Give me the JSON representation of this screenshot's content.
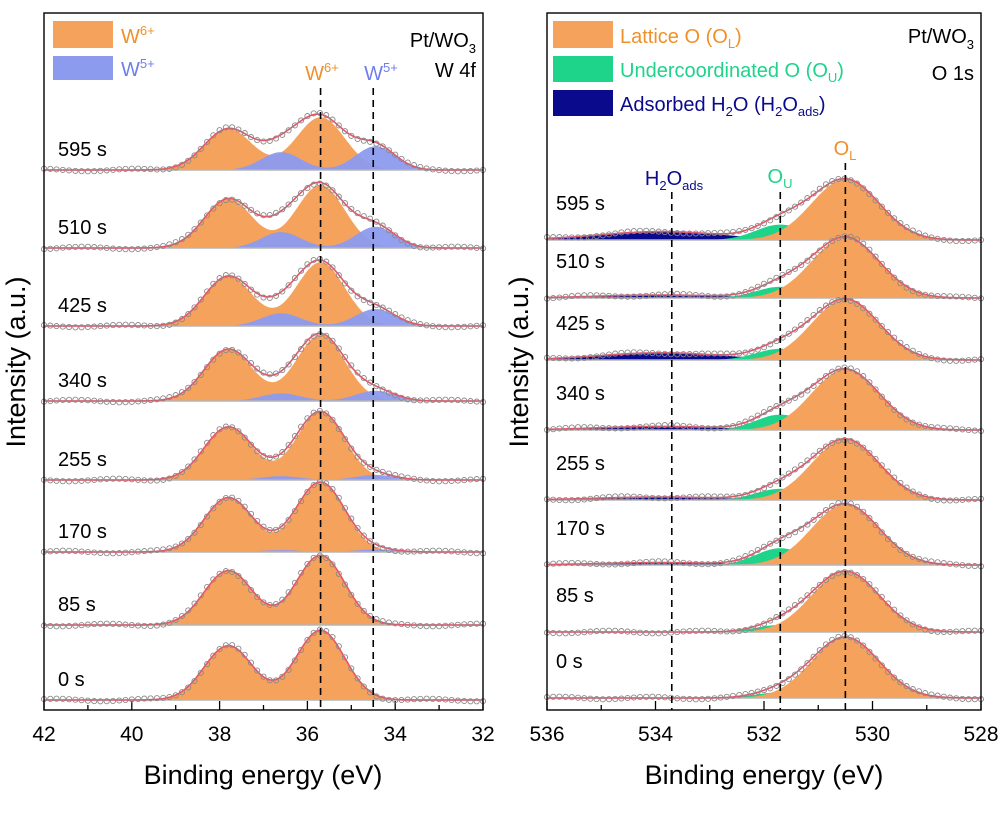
{
  "chart_data": [
    {
      "type": "area",
      "xlabel": "Binding energy (eV)",
      "ylabel": "Intensity (a.u.)",
      "xlim": [
        42,
        32
      ],
      "x_ticks": [
        "42",
        "40",
        "38",
        "36",
        "34",
        "32"
      ],
      "corner_text": [
        "Pt/WO3",
        "W 4f"
      ],
      "legend": [
        {
          "label": "W6+",
          "color": "#F5A25D"
        },
        {
          "label": "W5+",
          "color": "#8C9BEE"
        }
      ],
      "reference_lines": [
        {
          "label": "W6+",
          "x": 35.7,
          "color": "#F0902A"
        },
        {
          "label": "W5+",
          "x": 34.5,
          "color": "#6F7FEA"
        }
      ],
      "spectra": [
        {
          "time": "595 s",
          "w6_peaks": [
            37.8,
            35.7
          ],
          "w6_height": 0.62,
          "w5_peaks": [
            36.6,
            34.45
          ],
          "w5_height": 0.28
        },
        {
          "time": "510 s",
          "w6_peaks": [
            37.8,
            35.7
          ],
          "w6_height": 0.74,
          "w5_peaks": [
            36.6,
            34.45
          ],
          "w5_height": 0.25
        },
        {
          "time": "425 s",
          "w6_peaks": [
            37.8,
            35.7
          ],
          "w6_height": 0.75,
          "w5_peaks": [
            36.6,
            34.45
          ],
          "w5_height": 0.2
        },
        {
          "time": "340 s",
          "w6_peaks": [
            37.8,
            35.7
          ],
          "w6_height": 0.78,
          "w5_peaks": [
            36.6,
            34.45
          ],
          "w5_height": 0.12
        },
        {
          "time": "255 s",
          "w6_peaks": [
            37.8,
            35.7
          ],
          "w6_height": 0.8,
          "w5_peaks": [
            36.6,
            34.45
          ],
          "w5_height": 0.06
        },
        {
          "time": "170 s",
          "w6_peaks": [
            37.8,
            35.7
          ],
          "w6_height": 0.82,
          "w5_peaks": [
            36.6,
            34.45
          ],
          "w5_height": 0.03
        },
        {
          "time": "85 s",
          "w6_peaks": [
            37.8,
            35.7
          ],
          "w6_height": 0.82,
          "w5_peaks": [
            36.6,
            34.45
          ],
          "w5_height": 0.0
        },
        {
          "time": "0 s",
          "w6_peaks": [
            37.8,
            35.7
          ],
          "w6_height": 0.82,
          "w5_peaks": [
            36.6,
            34.45
          ],
          "w5_height": 0.0
        }
      ]
    },
    {
      "type": "area",
      "xlabel": "Binding energy (eV)",
      "ylabel": "Intensity (a.u.)",
      "xlim": [
        536,
        528
      ],
      "x_ticks": [
        "536",
        "534",
        "532",
        "530",
        "528"
      ],
      "corner_text": [
        "Pt/WO3",
        "O 1s"
      ],
      "legend": [
        {
          "label": "Lattice O (OL)",
          "color": "#F5A25D"
        },
        {
          "label": "Undercoordinated O (OU)",
          "color": "#1ED38A"
        },
        {
          "label": "Adsorbed H2O (H2Oads)",
          "color": "#0A0A8C"
        }
      ],
      "reference_lines": [
        {
          "label": "H2Oads",
          "x": 533.7,
          "color": "#0A0A8C"
        },
        {
          "label": "OU",
          "x": 531.7,
          "color": "#1ED38A"
        },
        {
          "label": "OL",
          "x": 530.5,
          "color": "#F0902A"
        }
      ],
      "spectra": [
        {
          "time": "595 s",
          "OL": 0.78,
          "OU": 0.22,
          "H2Oads": 0.14
        },
        {
          "time": "510 s",
          "OL": 0.78,
          "OU": 0.16,
          "H2Oads": 0.05
        },
        {
          "time": "425 s",
          "OL": 0.78,
          "OU": 0.16,
          "H2Oads": 0.12
        },
        {
          "time": "340 s",
          "OL": 0.78,
          "OU": 0.22,
          "H2Oads": 0.06
        },
        {
          "time": "255 s",
          "OL": 0.78,
          "OU": 0.16,
          "H2Oads": 0.05
        },
        {
          "time": "170 s",
          "OL": 0.78,
          "OU": 0.24,
          "H2Oads": 0.04
        },
        {
          "time": "85 s",
          "OL": 0.78,
          "OU": 0.1,
          "H2Oads": 0.0
        },
        {
          "time": "0 s",
          "OL": 0.78,
          "OU": 0.08,
          "H2Oads": 0.0
        }
      ]
    }
  ]
}
